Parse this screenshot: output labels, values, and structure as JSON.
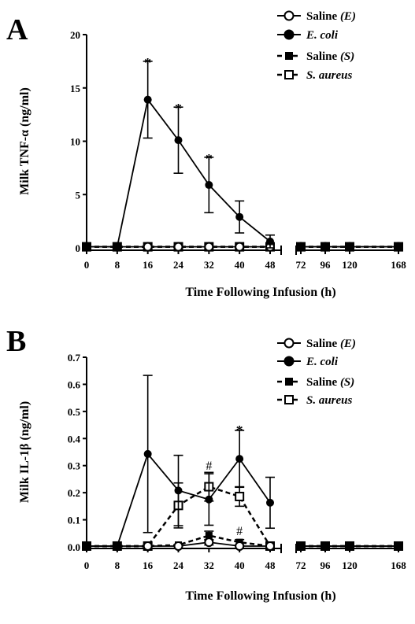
{
  "chart_data": [
    {
      "panel": "A",
      "type": "line",
      "ylabel": "Milk TNF-α (ng/ml)",
      "xlabel": "Time Following Infusion (h)",
      "ylim": [
        0,
        20
      ],
      "yticks": [
        "0",
        "5",
        "10",
        "15",
        "20"
      ],
      "x_left": [
        0,
        8,
        16,
        24,
        32,
        40,
        48
      ],
      "x_right": [
        72,
        96,
        120,
        168
      ],
      "xtick_labels": [
        "0",
        "8",
        "16",
        "24",
        "32",
        "40",
        "48",
        "72",
        "96",
        "120",
        "168"
      ],
      "series": [
        {
          "name": "Saline",
          "name_suffix": "(E)",
          "name_italic": false,
          "marker": "open-circle",
          "line": "solid",
          "x": [
            0,
            8,
            16,
            24,
            32,
            40,
            48,
            72,
            96,
            120,
            168
          ],
          "y": [
            0.1,
            0.1,
            0.1,
            0.1,
            0.1,
            0.1,
            0.1,
            0.1,
            0.1,
            0.1,
            0.1
          ],
          "err": [
            0,
            0,
            0,
            0,
            0,
            0,
            0,
            0,
            0,
            0,
            0
          ]
        },
        {
          "name": "E. coli",
          "name_suffix": "",
          "name_italic": true,
          "marker": "filled-circle",
          "line": "solid",
          "x": [
            0,
            8,
            16,
            24,
            32,
            40,
            48,
            72,
            96,
            120,
            168
          ],
          "y": [
            0.1,
            0.1,
            13.9,
            10.1,
            5.9,
            2.9,
            0.6,
            0.1,
            0.1,
            0.1,
            0.1
          ],
          "err": [
            0,
            0,
            3.6,
            3.1,
            2.6,
            1.5,
            0.6,
            0,
            0,
            0,
            0
          ]
        },
        {
          "name": "Saline",
          "name_suffix": "(S)",
          "name_italic": false,
          "marker": "filled-square",
          "line": "dashed",
          "x": [
            0,
            8,
            16,
            24,
            32,
            40,
            48,
            72,
            96,
            120,
            168
          ],
          "y": [
            0.1,
            0.1,
            0.1,
            0.1,
            0.1,
            0.1,
            0.1,
            0.1,
            0.1,
            0.1,
            0.1
          ],
          "err": [
            0,
            0,
            0,
            0,
            0,
            0,
            0,
            0,
            0,
            0,
            0
          ]
        },
        {
          "name": "S. aureus",
          "name_suffix": "",
          "name_italic": true,
          "marker": "open-square",
          "line": "dashed",
          "x": [
            0,
            8,
            16,
            24,
            32,
            40,
            48,
            72,
            96,
            120,
            168
          ],
          "y": [
            0.1,
            0.1,
            0.1,
            0.1,
            0.1,
            0.1,
            0.1,
            0.1,
            0.1,
            0.1,
            0.1
          ],
          "err": [
            0,
            0,
            0,
            0,
            0,
            0,
            0,
            0,
            0,
            0,
            0
          ]
        }
      ],
      "annotations": [
        {
          "text": "*",
          "x": 16,
          "y": 17.5
        },
        {
          "text": "*",
          "x": 24,
          "y": 13.2
        },
        {
          "text": "*",
          "x": 32,
          "y": 8.5
        }
      ]
    },
    {
      "panel": "B",
      "type": "line",
      "ylabel": "Milk IL-1β (ng/ml)",
      "xlabel": "Time Following Infusion (h)",
      "ylim": [
        0,
        0.7
      ],
      "yticks": [
        "0.0",
        "0.1",
        "0.2",
        "0.3",
        "0.4",
        "0.5",
        "0.6",
        "0.7"
      ],
      "x_left": [
        0,
        8,
        16,
        24,
        32,
        40,
        48
      ],
      "x_right": [
        72,
        96,
        120,
        168
      ],
      "xtick_labels": [
        "0",
        "8",
        "16",
        "24",
        "32",
        "40",
        "48",
        "72",
        "96",
        "120",
        "168"
      ],
      "series": [
        {
          "name": "Saline",
          "name_suffix": "(E)",
          "name_italic": false,
          "marker": "open-circle",
          "line": "solid",
          "x": [
            0,
            8,
            16,
            24,
            32,
            40,
            48,
            72,
            96,
            120,
            168
          ],
          "y": [
            0.003,
            0.003,
            0.003,
            0.003,
            0.017,
            0.003,
            0.003,
            0.003,
            0.003,
            0.003,
            0.003
          ],
          "err": [
            0,
            0,
            0,
            0,
            0.01,
            0,
            0,
            0,
            0,
            0,
            0
          ]
        },
        {
          "name": "E. coli",
          "name_suffix": "",
          "name_italic": true,
          "marker": "filled-circle",
          "line": "solid",
          "x": [
            0,
            8,
            16,
            24,
            32,
            40,
            48,
            72,
            96,
            120,
            168
          ],
          "y": [
            0.003,
            0.003,
            0.343,
            0.208,
            0.175,
            0.325,
            0.163,
            0.003,
            0.003,
            0.003,
            0.003
          ],
          "err": [
            0,
            0,
            0.29,
            0.13,
            0.095,
            0.105,
            0.094,
            0,
            0,
            0,
            0
          ]
        },
        {
          "name": "Saline",
          "name_suffix": "(S)",
          "name_italic": false,
          "marker": "filled-square",
          "line": "dashed",
          "x": [
            0,
            8,
            16,
            24,
            32,
            40,
            48,
            72,
            96,
            120,
            168
          ],
          "y": [
            0.003,
            0.003,
            0.003,
            0.007,
            0.042,
            0.017,
            0.003,
            0.003,
            0.003,
            0.003,
            0.003
          ],
          "err": [
            0,
            0,
            0,
            0,
            0.016,
            0.01,
            0,
            0,
            0,
            0,
            0
          ]
        },
        {
          "name": "S. aureus",
          "name_suffix": "",
          "name_italic": true,
          "marker": "open-square",
          "line": "dashed",
          "x": [
            0,
            8,
            16,
            24,
            32,
            40,
            48,
            72,
            96,
            120,
            168
          ],
          "y": [
            0.003,
            0.003,
            0.003,
            0.153,
            0.222,
            0.186,
            0.003,
            0.003,
            0.003,
            0.003,
            0.003
          ],
          "err": [
            0,
            0,
            0,
            0.083,
            0.053,
            0.036,
            0,
            0,
            0,
            0,
            0
          ]
        }
      ],
      "annotations": [
        {
          "text": "*",
          "x": 40,
          "y": 0.435
        },
        {
          "text": "#",
          "x": 32,
          "y": 0.285
        },
        {
          "text": "#",
          "x": 40,
          "y": 0.043
        }
      ]
    }
  ]
}
